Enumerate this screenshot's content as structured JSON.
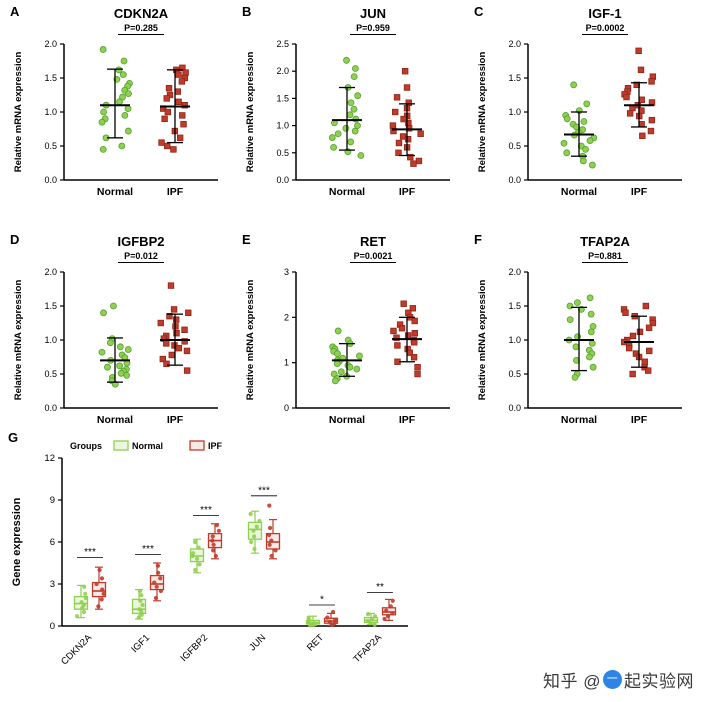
{
  "watermark": {
    "prefix": "知乎 @",
    "icon_char": "一",
    "suffix": "起实验网"
  },
  "colors": {
    "normal": "#8fd04e",
    "normal_stroke": "#55a032",
    "normal_tint": "#eaf6de",
    "ipf": "#c13b2a",
    "ipf_stroke": "#8e2619",
    "ipf_tint": "#f9eae7",
    "axis": "#000000"
  },
  "chart_data": [
    {
      "type": "scatter",
      "letter": "A",
      "title": "CDKN2A",
      "pvalue": "P=0.285",
      "ylabel": "Relative mRNA expression",
      "ylim": [
        0,
        2
      ],
      "ytick_values": [
        0,
        0.5,
        1,
        1.5,
        2
      ],
      "yticks": [
        "0.0",
        "0.5",
        "1.0",
        "1.5",
        "2.0"
      ],
      "categories": [
        "Normal",
        "IPF"
      ],
      "series": [
        {
          "name": "Normal",
          "marker": "circle",
          "mean": 1.1,
          "sd": [
            0.62,
            1.63
          ],
          "values": [
            1.92,
            1.75,
            1.62,
            1.55,
            1.48,
            1.42,
            1.38,
            1.32,
            1.27,
            1.22,
            1.15,
            1.1,
            1.05,
            1.0,
            0.95,
            0.9,
            0.85,
            0.72,
            0.62,
            0.5,
            0.45
          ]
        },
        {
          "name": "IPF",
          "marker": "square",
          "mean": 1.08,
          "sd": [
            0.55,
            1.62
          ],
          "values": [
            1.65,
            1.62,
            1.58,
            1.55,
            1.5,
            1.45,
            1.35,
            1.3,
            1.25,
            1.2,
            1.15,
            1.1,
            1.05,
            1.0,
            0.95,
            0.9,
            0.82,
            0.72,
            0.62,
            0.55,
            0.5,
            0.45
          ]
        }
      ]
    },
    {
      "type": "scatter",
      "letter": "B",
      "title": "JUN",
      "pvalue": "P=0.959",
      "ylabel": "Relative mRNA expression",
      "ylim": [
        0,
        2.5
      ],
      "ytick_values": [
        0,
        0.5,
        1,
        1.5,
        2,
        2.5
      ],
      "yticks": [
        "0.0",
        "0.5",
        "1.0",
        "1.5",
        "2.0",
        "2.5"
      ],
      "categories": [
        "Normal",
        "IPF"
      ],
      "series": [
        {
          "name": "Normal",
          "marker": "circle",
          "mean": 1.1,
          "sd": [
            0.55,
            1.7
          ],
          "values": [
            2.2,
            2.05,
            1.9,
            1.7,
            1.55,
            1.42,
            1.3,
            1.2,
            1.12,
            1.05,
            1.0,
            0.95,
            0.9,
            0.85,
            0.78,
            0.7,
            0.6,
            0.52,
            0.45
          ]
        },
        {
          "name": "IPF",
          "marker": "square",
          "mean": 0.93,
          "sd": [
            0.45,
            1.4
          ],
          "values": [
            2.0,
            1.7,
            1.52,
            1.42,
            1.32,
            1.25,
            1.18,
            1.12,
            1.05,
            1.0,
            0.95,
            0.9,
            0.85,
            0.8,
            0.75,
            0.68,
            0.6,
            0.5,
            0.42,
            0.35,
            0.3
          ]
        }
      ]
    },
    {
      "type": "scatter",
      "letter": "C",
      "title": "IGF-1",
      "pvalue": "P=0.0002",
      "ylabel": "Relative mRNA expression",
      "ylim": [
        0,
        2
      ],
      "ytick_values": [
        0,
        0.5,
        1,
        1.5,
        2
      ],
      "yticks": [
        "0.0",
        "0.5",
        "1.0",
        "1.5",
        "2.0"
      ],
      "categories": [
        "Normal",
        "IPF"
      ],
      "series": [
        {
          "name": "Normal",
          "marker": "circle",
          "mean": 0.67,
          "sd": [
            0.35,
            1.0
          ],
          "values": [
            1.4,
            1.12,
            1.02,
            0.95,
            0.9,
            0.86,
            0.82,
            0.78,
            0.74,
            0.7,
            0.66,
            0.62,
            0.58,
            0.54,
            0.5,
            0.45,
            0.4,
            0.35,
            0.28,
            0.22
          ]
        },
        {
          "name": "IPF",
          "marker": "square",
          "mean": 1.1,
          "sd": [
            0.78,
            1.43
          ],
          "values": [
            1.9,
            1.62,
            1.52,
            1.45,
            1.4,
            1.35,
            1.3,
            1.26,
            1.22,
            1.18,
            1.14,
            1.1,
            1.06,
            1.02,
            0.98,
            0.94,
            0.88,
            0.82,
            0.72,
            0.65
          ]
        }
      ]
    },
    {
      "type": "scatter",
      "letter": "D",
      "title": "IGFBP2",
      "pvalue": "P=0.012",
      "ylabel": "Relative mRNA expression",
      "ylim": [
        0,
        2
      ],
      "ytick_values": [
        0,
        0.5,
        1,
        1.5,
        2
      ],
      "yticks": [
        "0.0",
        "0.5",
        "1.0",
        "1.5",
        "2.0"
      ],
      "categories": [
        "Normal",
        "IPF"
      ],
      "series": [
        {
          "name": "Normal",
          "marker": "circle",
          "mean": 0.7,
          "sd": [
            0.38,
            1.03
          ],
          "values": [
            1.5,
            1.4,
            1.02,
            0.96,
            0.9,
            0.86,
            0.82,
            0.78,
            0.74,
            0.7,
            0.66,
            0.62,
            0.6,
            0.57,
            0.54,
            0.51,
            0.48,
            0.45,
            0.4,
            0.35
          ]
        },
        {
          "name": "IPF",
          "marker": "square",
          "mean": 1.0,
          "sd": [
            0.63,
            1.38
          ],
          "values": [
            1.8,
            1.45,
            1.4,
            1.35,
            1.3,
            1.25,
            1.2,
            1.15,
            1.1,
            1.06,
            1.02,
            0.98,
            0.95,
            0.92,
            0.88,
            0.84,
            0.78,
            0.72,
            0.65,
            0.55
          ]
        }
      ]
    },
    {
      "type": "scatter",
      "letter": "E",
      "title": "RET",
      "pvalue": "P=0.0021",
      "ylabel": "Relative mRNA expression",
      "ylim": [
        0,
        3
      ],
      "ytick_values": [
        0,
        1,
        2,
        3
      ],
      "yticks": [
        "0",
        "1",
        "2",
        "3"
      ],
      "categories": [
        "Normal",
        "IPF"
      ],
      "series": [
        {
          "name": "Normal",
          "marker": "circle",
          "mean": 1.05,
          "sd": [
            0.7,
            1.42
          ],
          "values": [
            1.7,
            1.5,
            1.42,
            1.35,
            1.3,
            1.25,
            1.2,
            1.15,
            1.1,
            1.06,
            1.02,
            0.98,
            0.94,
            0.9,
            0.86,
            0.8,
            0.75,
            0.7,
            0.65,
            0.6
          ]
        },
        {
          "name": "IPF",
          "marker": "square",
          "mean": 1.52,
          "sd": [
            1.02,
            2.0
          ],
          "values": [
            2.3,
            2.2,
            2.1,
            2.0,
            1.92,
            1.84,
            1.76,
            1.7,
            1.65,
            1.6,
            1.55,
            1.5,
            1.45,
            1.38,
            1.3,
            1.22,
            1.12,
            1.02,
            0.9,
            0.75
          ]
        }
      ]
    },
    {
      "type": "scatter",
      "letter": "F",
      "title": "TFAP2A",
      "pvalue": "P=0.881",
      "ylabel": "Relative mRNA expression",
      "ylim": [
        0,
        2
      ],
      "ytick_values": [
        0,
        0.5,
        1,
        1.5,
        2
      ],
      "yticks": [
        "0.0",
        "0.5",
        "1.0",
        "1.5",
        "2.0"
      ],
      "categories": [
        "Normal",
        "IPF"
      ],
      "series": [
        {
          "name": "Normal",
          "marker": "circle",
          "mean": 1.0,
          "sd": [
            0.55,
            1.48
          ],
          "values": [
            1.62,
            1.55,
            1.5,
            1.45,
            1.38,
            1.3,
            1.2,
            1.12,
            1.05,
            1.0,
            0.95,
            0.9,
            0.85,
            0.8,
            0.75,
            0.7,
            0.6,
            0.5,
            0.45
          ]
        },
        {
          "name": "IPF",
          "marker": "square",
          "mean": 0.97,
          "sd": [
            0.6,
            1.35
          ],
          "values": [
            1.5,
            1.45,
            1.4,
            1.35,
            1.3,
            1.25,
            1.18,
            1.12,
            1.06,
            1.0,
            0.97,
            0.93,
            0.88,
            0.84,
            0.8,
            0.75,
            0.68,
            0.6,
            0.55,
            0.5
          ]
        }
      ]
    },
    {
      "type": "box",
      "letter": "G",
      "ylabel": "Gene expression",
      "ylim": [
        0,
        12
      ],
      "ytick_values": [
        0,
        3,
        6,
        9,
        12
      ],
      "yticks": [
        "0",
        "3",
        "6",
        "9",
        "12"
      ],
      "legend": {
        "title": "Groups",
        "entries": [
          "Normal",
          "IPF"
        ]
      },
      "categories": [
        "CDKN2A",
        "IGF1",
        "IGFBP2",
        "JUN",
        "RET",
        "TFAP2A"
      ],
      "significance": [
        "***",
        "***",
        "***",
        "***",
        "*",
        "**"
      ],
      "sig_y": [
        4.9,
        5.1,
        7.9,
        9.3,
        1.5,
        2.4
      ],
      "series": [
        {
          "name": "Normal",
          "boxes": [
            [
              0.6,
              1.2,
              1.6,
              2.1,
              2.9
            ],
            [
              0.5,
              0.9,
              1.2,
              1.9,
              2.6
            ],
            [
              3.8,
              4.6,
              5.0,
              5.5,
              6.2
            ],
            [
              5.2,
              6.2,
              6.9,
              7.4,
              8.2
            ],
            [
              0.05,
              0.15,
              0.25,
              0.4,
              0.7
            ],
            [
              0.1,
              0.25,
              0.4,
              0.6,
              0.9
            ]
          ],
          "points": [
            [
              0.7,
              1.0,
              1.3,
              1.5,
              1.7,
              2.0,
              2.3,
              2.8
            ],
            [
              0.6,
              0.8,
              1.0,
              1.2,
              1.5,
              1.8,
              2.2,
              2.5
            ],
            [
              4.0,
              4.4,
              4.8,
              5.0,
              5.2,
              5.6,
              6.0
            ],
            [
              5.5,
              6.0,
              6.4,
              6.8,
              7.1,
              7.5,
              8.0
            ],
            [
              0.05,
              0.1,
              0.2,
              0.3,
              0.45,
              0.6
            ],
            [
              0.1,
              0.2,
              0.35,
              0.5,
              0.7,
              0.85
            ]
          ]
        },
        {
          "name": "IPF",
          "boxes": [
            [
              1.2,
              2.1,
              2.5,
              3.1,
              4.2
            ],
            [
              1.8,
              2.6,
              3.0,
              3.6,
              4.5
            ],
            [
              4.8,
              5.6,
              6.1,
              6.6,
              7.3
            ],
            [
              4.8,
              5.5,
              6.0,
              6.6,
              7.6
            ],
            [
              0.05,
              0.2,
              0.35,
              0.55,
              0.9
            ],
            [
              0.4,
              0.8,
              1.0,
              1.3,
              1.9
            ]
          ],
          "points": [
            [
              1.4,
              1.9,
              2.3,
              2.6,
              3.0,
              3.4,
              4.0
            ],
            [
              2.0,
              2.5,
              2.8,
              3.1,
              3.4,
              3.8,
              4.3
            ],
            [
              5.0,
              5.4,
              5.8,
              6.1,
              6.4,
              6.8,
              7.2
            ],
            [
              5.0,
              5.4,
              5.8,
              6.1,
              6.5,
              7.0,
              8.6
            ],
            [
              0.1,
              0.2,
              0.3,
              0.45,
              0.6,
              1.0
            ],
            [
              0.5,
              0.7,
              0.9,
              1.1,
              1.4,
              1.8
            ]
          ]
        }
      ]
    }
  ]
}
